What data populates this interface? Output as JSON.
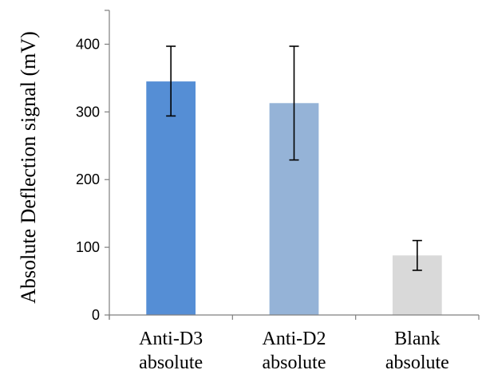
{
  "chart_data": {
    "type": "bar",
    "ylabel": "Absolute Deflection signal (mV)",
    "xlabel": "",
    "ylim": [
      0,
      450
    ],
    "yticks": [
      0,
      100,
      200,
      300,
      400
    ],
    "grid": false,
    "categories": [
      {
        "line1": "Anti-D3",
        "line2": "absolute"
      },
      {
        "line1": "Anti-D2",
        "line2": "absolute"
      },
      {
        "line1": "Blank",
        "line2": "absolute"
      }
    ],
    "values": [
      345,
      313,
      88
    ],
    "error_low": [
      294,
      229,
      66
    ],
    "error_high": [
      397,
      397,
      110
    ],
    "colors": [
      "#558ed5",
      "#95b3d7",
      "#d9d9d9"
    ]
  }
}
